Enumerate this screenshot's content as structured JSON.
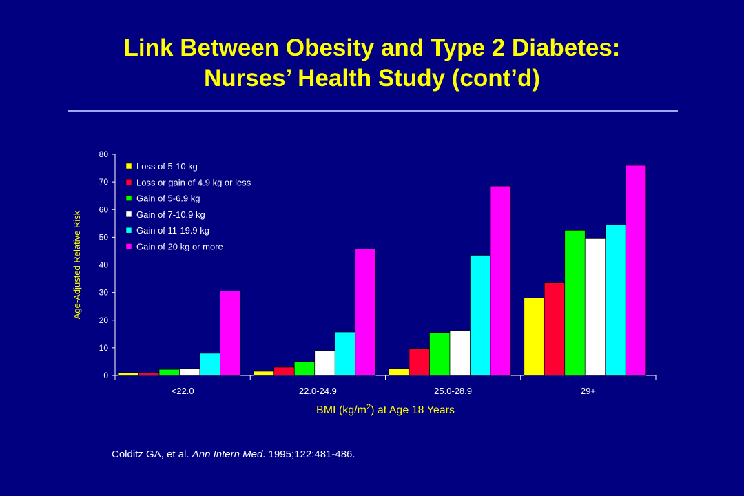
{
  "slide": {
    "title_line1": "Link Between Obesity and Type 2 Diabetes:",
    "title_line2": "Nurses’ Health Study (cont’d)",
    "citation": {
      "authors": "Colditz GA, et al.",
      "journal": "Ann Intern Med",
      "details": ". 1995;122:481-486."
    }
  },
  "colors": {
    "background": "#000080",
    "title": "#FFFF00",
    "axis_text": "#FFFF00",
    "tick_text": "#FFFFFF"
  },
  "chart_data": {
    "type": "bar",
    "title": "",
    "xlabel_pre": "BMI (kg/m",
    "xlabel_sup": "2",
    "xlabel_post": ") at Age 18 Years",
    "ylabel": "Age-Adjusted Relative Risk",
    "categories": [
      "<22.0",
      "22.0-24.9",
      "25.0-28.9",
      "29+"
    ],
    "ylim": [
      0,
      80
    ],
    "yticks": [
      0,
      10,
      20,
      30,
      40,
      50,
      60,
      70,
      80
    ],
    "legend_position": "top-left",
    "grid": false,
    "series": [
      {
        "name": "Loss of 5-10 kg",
        "color": "#FFFF00",
        "values": [
          1,
          1.5,
          2.5,
          28
        ]
      },
      {
        "name": "Loss or gain of 4.9 kg or less",
        "color": "#FF0033",
        "values": [
          1,
          3,
          9.8,
          33.5
        ]
      },
      {
        "name": "Gain of 5-6.9 kg",
        "color": "#00FF00",
        "values": [
          2.2,
          5,
          15.5,
          52.5
        ]
      },
      {
        "name": "Gain of 7-10.9 kg",
        "color": "#FFFFFF",
        "values": [
          2.5,
          9,
          16.3,
          49.5
        ]
      },
      {
        "name": "Gain of 11-19.9 kg",
        "color": "#00FFFF",
        "values": [
          8,
          15.7,
          43.5,
          54.5
        ]
      },
      {
        "name": "Gain of 20 kg or more",
        "color": "#FF00FF",
        "values": [
          30.5,
          45.8,
          68.5,
          76
        ]
      }
    ]
  }
}
